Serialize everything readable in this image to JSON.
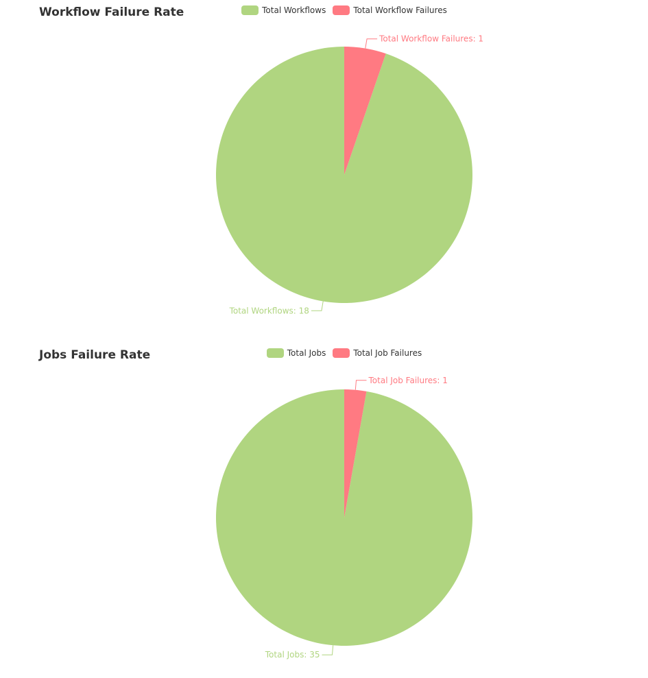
{
  "chart_data": [
    {
      "type": "pie",
      "title": "Workflow Failure Rate",
      "slices": [
        {
          "label": "Total Workflows",
          "value": 18,
          "color": "#b0d580",
          "data_label": "Total Workflows: 18"
        },
        {
          "label": "Total Workflow Failures",
          "value": 1,
          "color": "#ff7a82",
          "data_label": "Total Workflow Failures: 1"
        }
      ],
      "legend_placement": "top-center"
    },
    {
      "type": "pie",
      "title": "Jobs Failure Rate",
      "slices": [
        {
          "label": "Total Jobs",
          "value": 35,
          "color": "#b0d580",
          "data_label": "Total Jobs: 35"
        },
        {
          "label": "Total Job Failures",
          "value": 1,
          "color": "#ff7a82",
          "data_label": "Total Job Failures: 1"
        }
      ],
      "legend_placement": "top-center"
    }
  ]
}
